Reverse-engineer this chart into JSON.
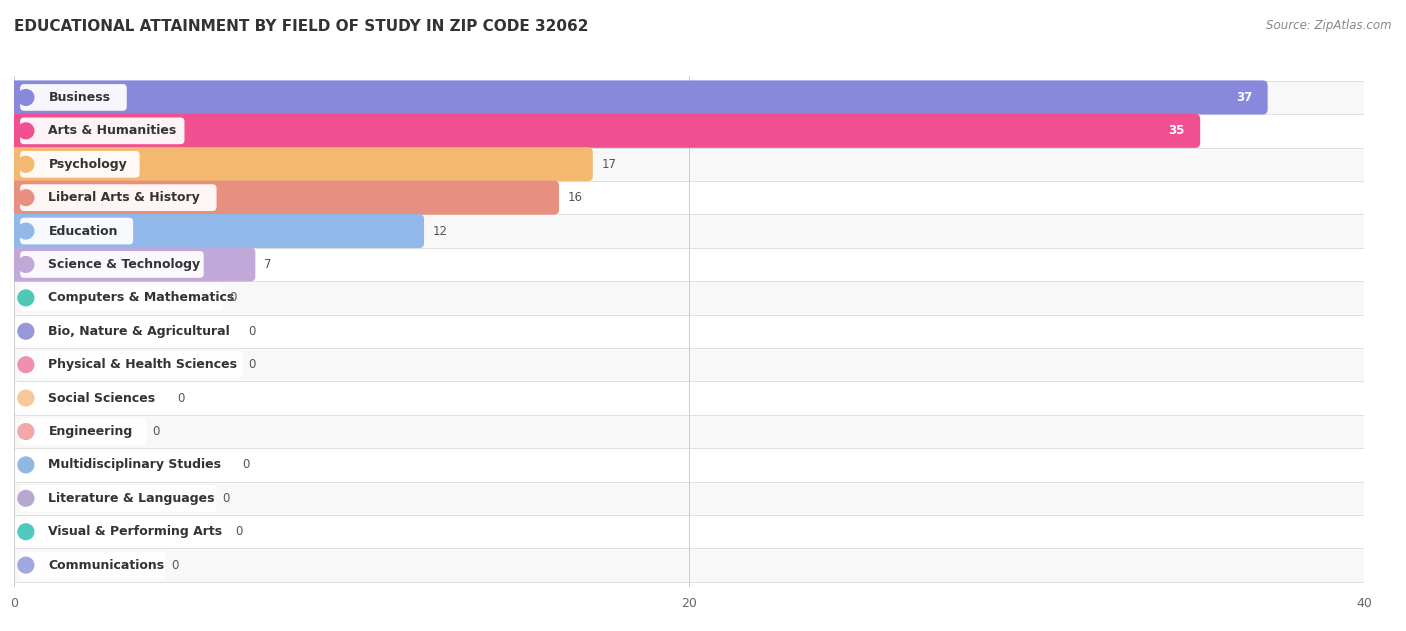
{
  "title": "EDUCATIONAL ATTAINMENT BY FIELD OF STUDY IN ZIP CODE 32062",
  "source": "Source: ZipAtlas.com",
  "categories": [
    "Business",
    "Arts & Humanities",
    "Psychology",
    "Liberal Arts & History",
    "Education",
    "Science & Technology",
    "Computers & Mathematics",
    "Bio, Nature & Agricultural",
    "Physical & Health Sciences",
    "Social Sciences",
    "Engineering",
    "Multidisciplinary Studies",
    "Literature & Languages",
    "Visual & Performing Arts",
    "Communications"
  ],
  "values": [
    37,
    35,
    17,
    16,
    12,
    7,
    0,
    0,
    0,
    0,
    0,
    0,
    0,
    0,
    0
  ],
  "bar_colors": [
    "#8888dd",
    "#f05090",
    "#f5b870",
    "#e89080",
    "#90b8e8",
    "#c0a8d8",
    "#50c8b8",
    "#9898d8",
    "#f090b0",
    "#f8c898",
    "#f0a8a8",
    "#90b8e0",
    "#b8a8d0",
    "#50c8c0",
    "#a0a8e0"
  ],
  "xlim": [
    0,
    40
  ],
  "xticks": [
    0,
    20,
    40
  ],
  "bg_color": "#ffffff",
  "row_even_color": "#f8f8f8",
  "row_odd_color": "#ffffff",
  "separator_color": "#e0e0e0",
  "title_fontsize": 11,
  "source_fontsize": 8.5,
  "label_fontsize": 9,
  "value_fontsize": 8.5,
  "bar_height": 0.72,
  "value_label_threshold": 7
}
